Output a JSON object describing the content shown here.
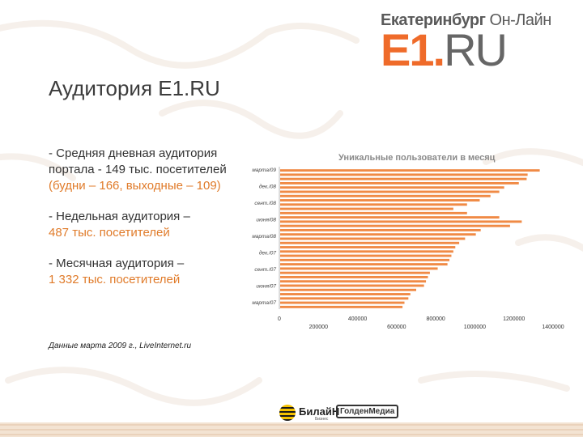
{
  "logo": {
    "tagline_bold": "Екатеринбург",
    "tagline_light": " Он-Лайн",
    "brand_e1": "E1.",
    "brand_ru": "RU"
  },
  "title": "Аудитория E1.RU",
  "bullets": [
    {
      "lines": [
        "- Средняя дневная аудитория",
        "портала - 149 тыс. посетителей"
      ],
      "highlight": "(будни – 166, выходные – 109)"
    },
    {
      "lines": [
        "- Недельная аудитория –"
      ],
      "highlight": "487 тыс. посетителей"
    },
    {
      "lines": [
        "- Месячная аудитория –"
      ],
      "highlight": "1 332 тыс. посетителей"
    }
  ],
  "source": "Данные марта 2009 г., LiveInternet.ru",
  "footer": {
    "beeline": "БилайН",
    "beeline_sub": "Бизнес",
    "golden": "ГолденМедиа"
  },
  "colors": {
    "accent": "#ef6b2a",
    "bar": "#f08a45",
    "text": "#333333",
    "highlight": "#e07b2a"
  },
  "chart_data": {
    "type": "bar",
    "orientation": "horizontal",
    "title": "Уникальные пользователи в месяц",
    "labeled_categories": [
      "марта/09",
      "дек./08",
      "сент./08",
      "июня/08",
      "марта/08",
      "дек./07",
      "сент./07",
      "июня/07",
      "марта/07"
    ],
    "values": [
      1332000,
      1270000,
      1265000,
      1225000,
      1150000,
      1125000,
      1080000,
      1025000,
      960000,
      890000,
      960000,
      1125000,
      1240000,
      1180000,
      1030000,
      1005000,
      950000,
      920000,
      900000,
      890000,
      880000,
      870000,
      860000,
      810000,
      770000,
      760000,
      750000,
      740000,
      700000,
      670000,
      660000,
      640000,
      630000
    ],
    "xlim": [
      0,
      1400000
    ],
    "xticks": [
      "0",
      "200000",
      "400000",
      "600000",
      "800000",
      "1000000",
      "1200000",
      "1400000"
    ],
    "grid": false,
    "legend": "none"
  }
}
